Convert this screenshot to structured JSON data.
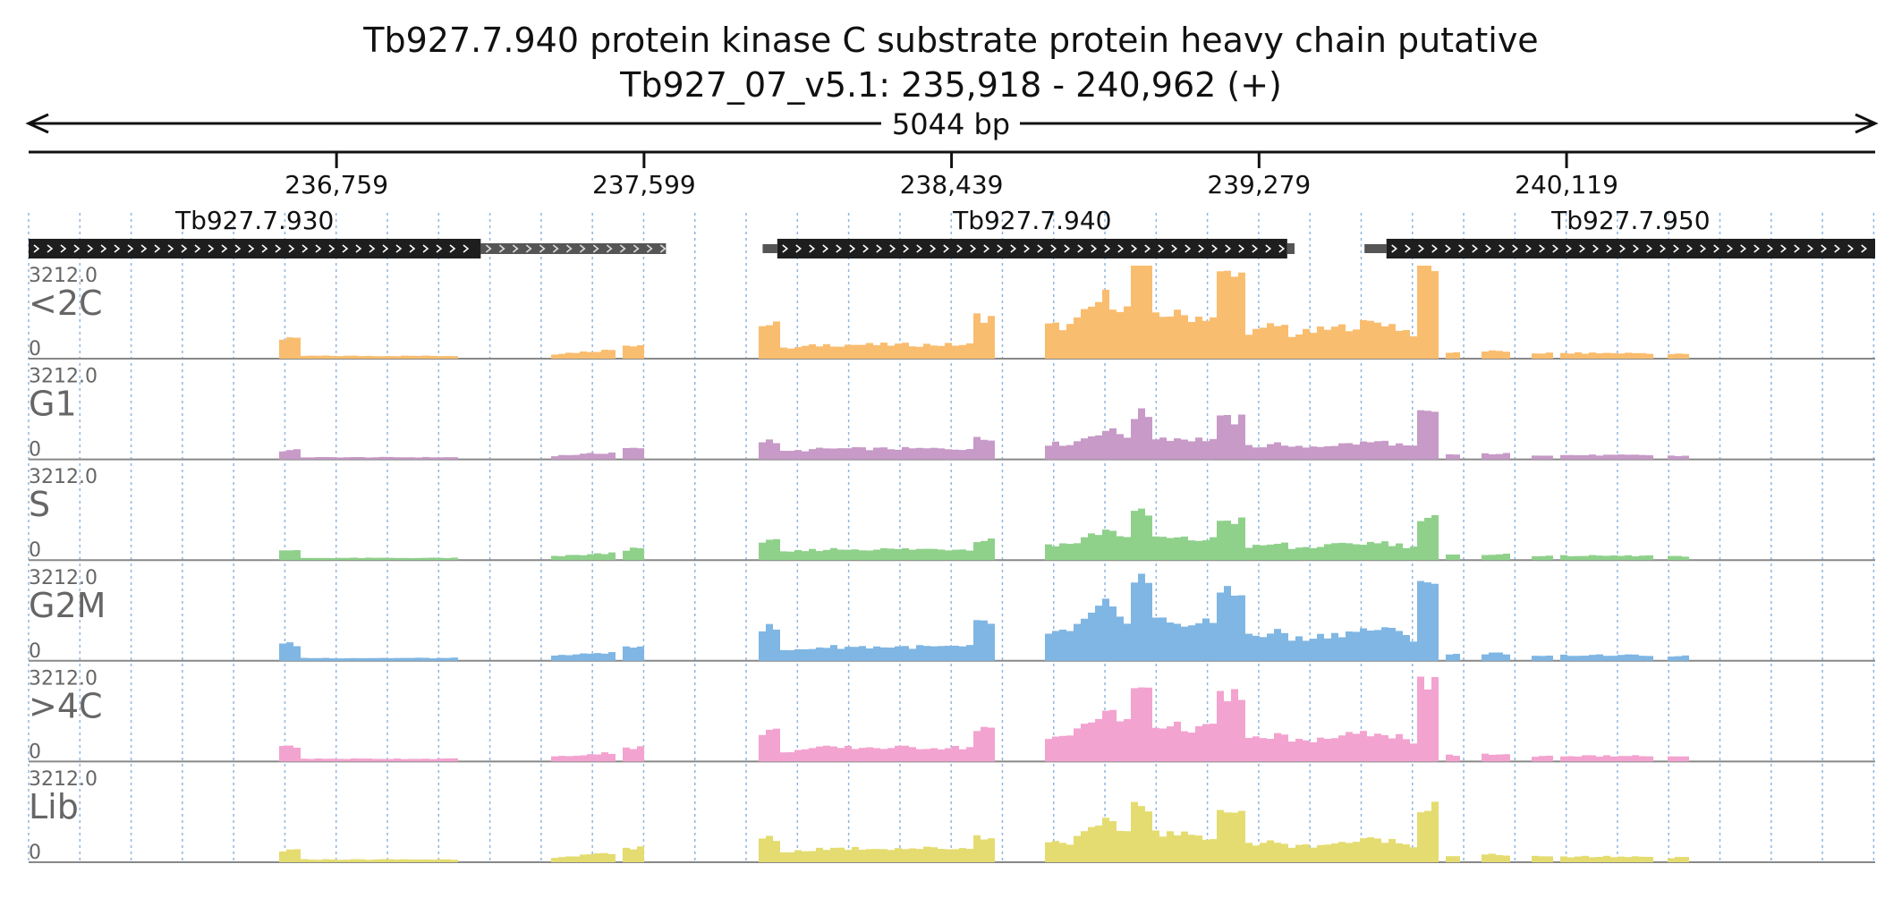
{
  "chart_data": {
    "type": "area",
    "title": "Tb927.7.940  protein kinase C substrate protein  heavy chain  putative",
    "subtitle": "Tb927_07_v5.1: 235,918 - 240,962 (+)",
    "span_label": "5044 bp",
    "xlim": [
      235918,
      240962
    ],
    "ticks": [
      236759,
      237599,
      238439,
      239279,
      240119
    ],
    "tick_labels": [
      "236,759",
      "237,599",
      "238,439",
      "239,279",
      "240,119"
    ],
    "genes": [
      {
        "name": "Tb927.7.930",
        "start": 235918,
        "end": 237153,
        "utr_end": 237659,
        "strand": "+"
      },
      {
        "name": "Tb927.7.940",
        "start": 237963,
        "end": 239356,
        "utr_start": 237923,
        "utr_end": 239376,
        "strand": "+"
      },
      {
        "name": "Tb927.7.950",
        "start": 239627,
        "end": 240962,
        "utr_start": 239567,
        "strand": "+"
      }
    ],
    "tracks": [
      {
        "label": "<2C",
        "ymax_label": "3212.0",
        "ymin_label": "0",
        "color": "#f9bd6f",
        "scale": 1.0
      },
      {
        "label": "G1",
        "ymax_label": "3212.0",
        "ymin_label": "0",
        "color": "#c79ac7",
        "scale": 0.48
      },
      {
        "label": "S",
        "ymax_label": "3212.0",
        "ymin_label": "0",
        "color": "#8fd18b",
        "scale": 0.49
      },
      {
        "label": "G2M",
        "ymax_label": "3212.0",
        "ymin_label": "0",
        "color": "#7fb6e3",
        "scale": 0.88
      },
      {
        "label": ">4C",
        "ymax_label": "3212.0",
        "ymin_label": "0",
        "color": "#f3a3cf",
        "scale": 0.8
      },
      {
        "label": "Lib",
        "ymax_label": "3212.0",
        "ymin_label": "0",
        "color": "#e4dc70",
        "scale": 0.63
      }
    ],
    "ylim": [
      0,
      3212.0
    ],
    "coverage_profile": [
      [
        236603,
        236658,
        0.2,
        0.2
      ],
      [
        236658,
        237100,
        0.03,
        0.03
      ],
      [
        236800,
        236950,
        0.05,
        0.05
      ],
      [
        237350,
        237530,
        0.05,
        0.1
      ],
      [
        237538,
        237590,
        0.15,
        0.15
      ],
      [
        237905,
        237963,
        0.4,
        0.4
      ],
      [
        237963,
        238093,
        0.1,
        0.15
      ],
      [
        238093,
        238493,
        0.15,
        0.15
      ],
      [
        238493,
        238553,
        0.45,
        0.45
      ],
      [
        238703,
        238763,
        0.35,
        0.35
      ],
      [
        238773,
        238843,
        0.37,
        0.62
      ],
      [
        238843,
        238923,
        0.7,
        0.52
      ],
      [
        238923,
        238983,
        1.0,
        1.0
      ],
      [
        238983,
        239100,
        0.5,
        0.45
      ],
      [
        239100,
        239163,
        0.45,
        0.45
      ],
      [
        239163,
        239233,
        0.88,
        0.88
      ],
      [
        239233,
        239296,
        0.3,
        0.3
      ],
      [
        239296,
        239356,
        0.35,
        0.35
      ],
      [
        239356,
        239616,
        0.25,
        0.4
      ],
      [
        239616,
        239716,
        0.4,
        0.25
      ],
      [
        239720,
        239770,
        1.0,
        1.0
      ],
      [
        239780,
        239830,
        0.07,
        0.07
      ],
      [
        239880,
        239960,
        0.08,
        0.08
      ],
      [
        240030,
        240080,
        0.06,
        0.06
      ],
      [
        240100,
        240350,
        0.06,
        0.06
      ],
      [
        240400,
        240460,
        0.05,
        0.05
      ]
    ]
  }
}
